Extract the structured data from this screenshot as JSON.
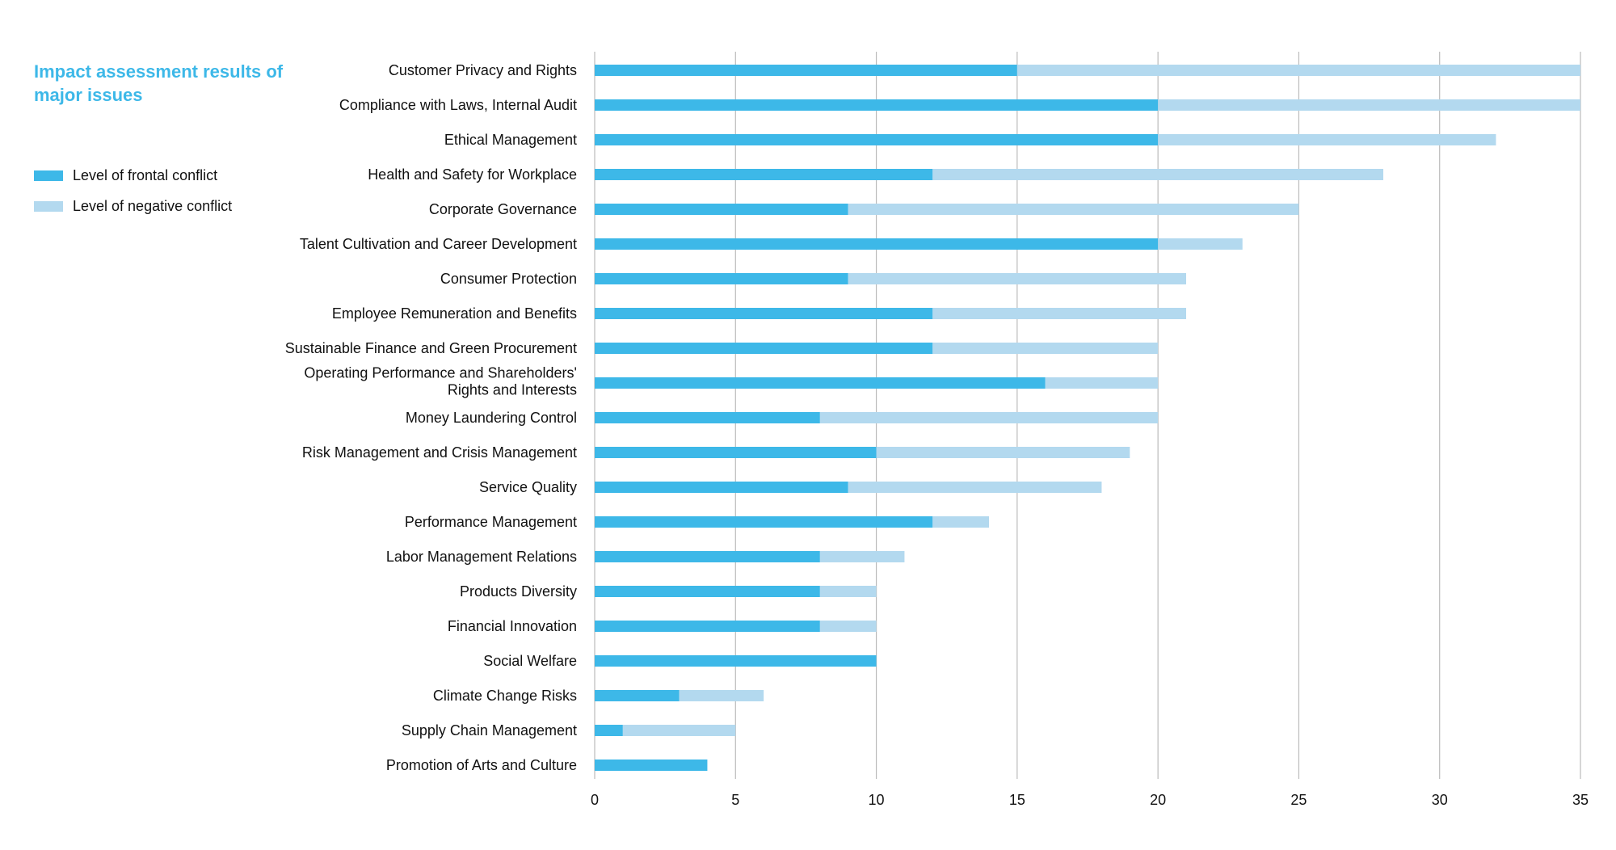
{
  "title": "Impact assessment results of major issues",
  "legend": {
    "frontal": "Level of frontal conflict",
    "negative": "Level of negative conflict"
  },
  "colors": {
    "frontal": "#3db8e8",
    "negative": "#b3d9ef",
    "gridline": "#bbbbbb",
    "title": "#3db8e8"
  },
  "chart_data": {
    "type": "bar",
    "orientation": "horizontal",
    "stacked": true,
    "title": "Impact assessment results of major issues",
    "xlabel": "",
    "ylabel": "",
    "xlim": [
      0,
      35
    ],
    "xticks": [
      0,
      5,
      10,
      15,
      20,
      25,
      30,
      35
    ],
    "grid": "vertical",
    "legend_position": "left",
    "categories": [
      "Customer Privacy and Rights",
      "Compliance with Laws, Internal Audit",
      "Ethical Management",
      "Health and Safety for Workplace",
      "Corporate Governance",
      "Talent Cultivation and Career Development",
      "Consumer Protection",
      "Employee Remuneration and Benefits",
      "Sustainable Finance and Green Procurement",
      "Operating Performance and Shareholders' Rights and Interests",
      "Money Laundering Control",
      "Risk Management and Crisis Management",
      "Service Quality",
      "Performance Management",
      "Labor Management Relations",
      "Products Diversity",
      "Financial Innovation",
      "Social Welfare",
      "Climate Change Risks",
      "Supply Chain Management",
      "Promotion of Arts and Culture"
    ],
    "category_label_lines": [
      [
        "Customer Privacy and Rights"
      ],
      [
        "Compliance with Laws, Internal Audit"
      ],
      [
        "Ethical Management"
      ],
      [
        "Health and Safety for Workplace"
      ],
      [
        "Corporate Governance"
      ],
      [
        "Talent Cultivation and Career Development"
      ],
      [
        "Consumer Protection"
      ],
      [
        "Employee Remuneration and Benefits"
      ],
      [
        "Sustainable Finance and Green Procurement"
      ],
      [
        "Operating Performance and Shareholders'",
        "Rights and Interests"
      ],
      [
        "Money Laundering Control"
      ],
      [
        "Risk Management and Crisis Management"
      ],
      [
        "Service Quality"
      ],
      [
        "Performance Management"
      ],
      [
        "Labor Management Relations"
      ],
      [
        "Products Diversity"
      ],
      [
        "Financial Innovation"
      ],
      [
        "Social Welfare"
      ],
      [
        "Climate Change Risks"
      ],
      [
        "Supply Chain Management"
      ],
      [
        "Promotion of Arts and Culture"
      ]
    ],
    "series": [
      {
        "name": "Level of frontal conflict",
        "values": [
          15,
          20,
          20,
          12,
          9,
          20,
          9,
          12,
          12,
          16,
          8,
          10,
          9,
          12,
          8,
          8,
          8,
          10,
          3,
          1,
          4
        ]
      },
      {
        "name": "Level of negative conflict",
        "values": [
          20,
          15,
          12,
          16,
          16,
          3,
          12,
          9,
          8,
          4,
          12,
          9,
          9,
          2,
          3,
          2,
          2,
          0,
          3,
          4,
          0
        ]
      }
    ]
  }
}
